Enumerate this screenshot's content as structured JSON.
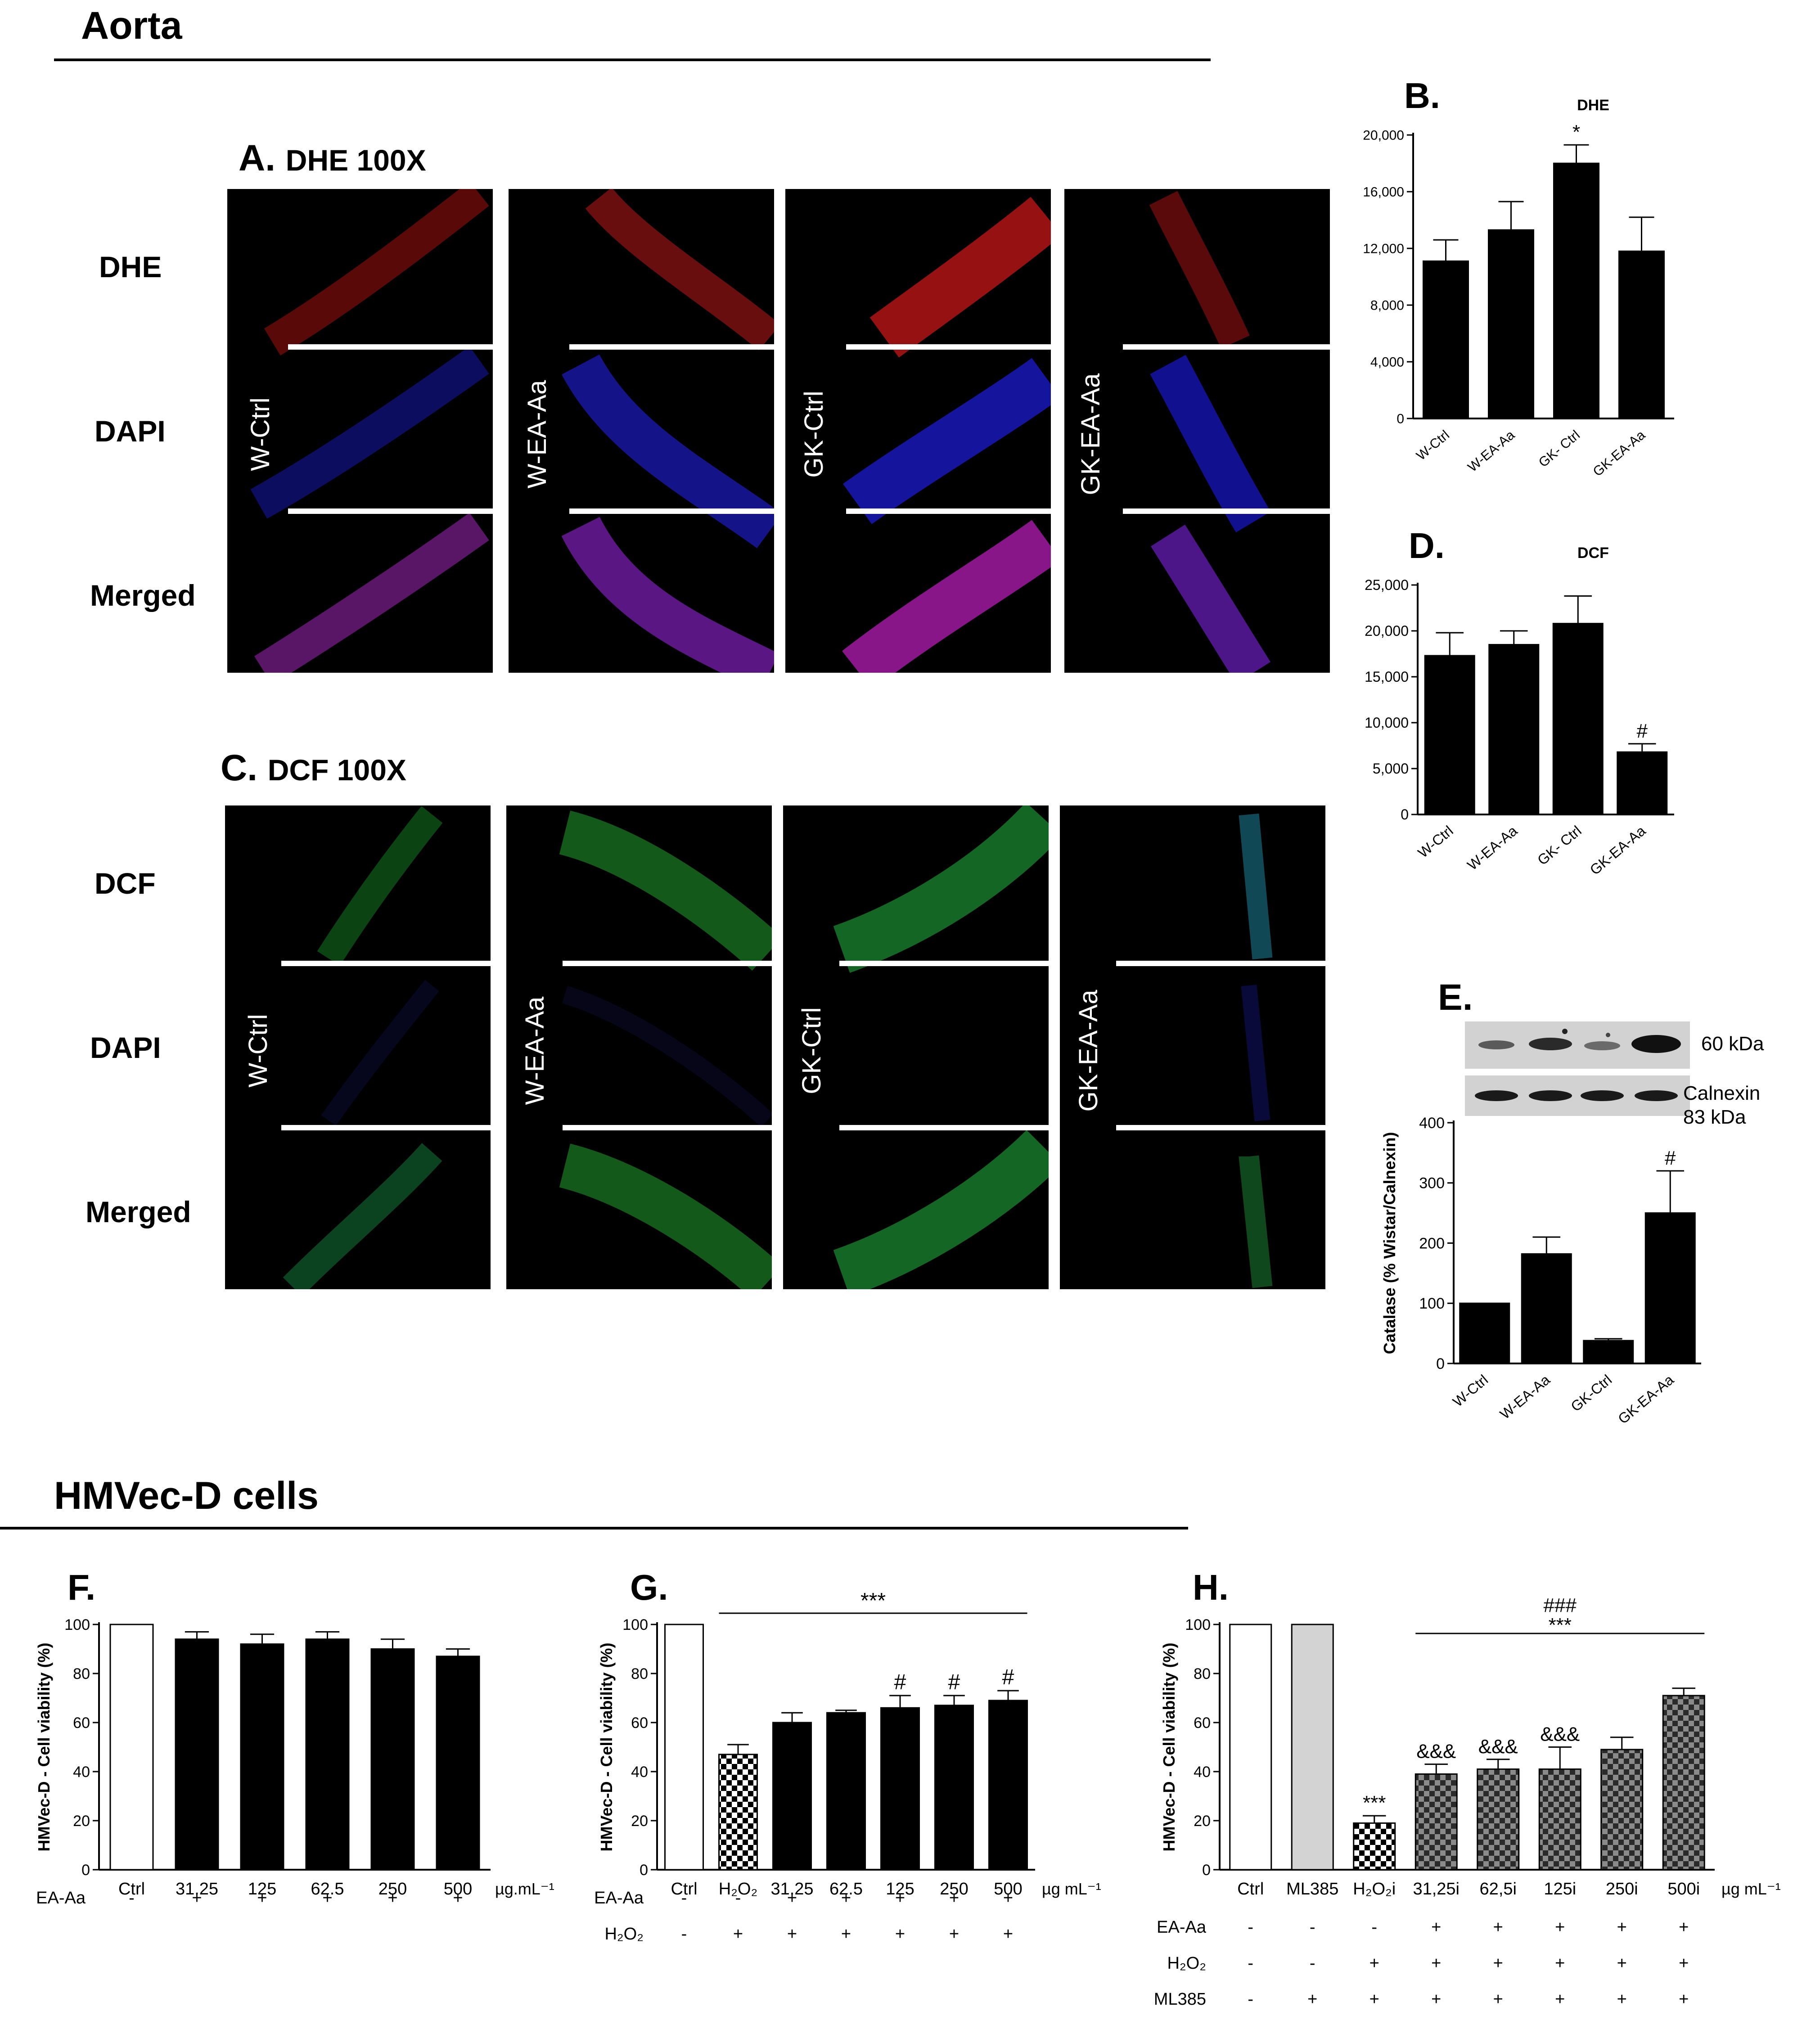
{
  "sections": {
    "aorta": "Aorta",
    "cells": "HMVec-D cells"
  },
  "panel_a": {
    "letter": "A.",
    "title": "DHE 100X",
    "rows": [
      "DHE",
      "DAPI",
      "Merged"
    ],
    "groups": [
      "W-Ctrl",
      "W-EA-Aa",
      "GK-Ctrl",
      "GK-EA-Aa"
    ]
  },
  "panel_c": {
    "letter": "C.",
    "title": "DCF 100X",
    "rows": [
      "DCF",
      "DAPI",
      "Merged"
    ],
    "groups": [
      "W-Ctrl",
      "W-EA-Aa",
      "GK-Ctrl",
      "GK-EA-Aa"
    ]
  },
  "panel_e_blot": {
    "letter": "E.",
    "band_top_label": "60 kDa",
    "band_bottom_label_1": "Calnexin",
    "band_bottom_label_2": "83 kDa"
  },
  "colors": {
    "bar": "#000000",
    "open_bar": "#ffffff",
    "grey_bar": "#d3d3d3",
    "checker_dark": "#000000",
    "checker_mid": "#3c3c3c",
    "dhe_red": "#b01010",
    "dapi_blue": "#1a1ad0",
    "merged_magenta": "#9a1a9a",
    "dcf_green": "#1f8a1f"
  },
  "chart_data": [
    {
      "id": "B",
      "letter": "B.",
      "type": "bar",
      "title": "DHE",
      "categories": [
        "W-Ctrl",
        "W-EA-Aa",
        "GK- Ctrl",
        "GK-EA-Aa"
      ],
      "values": [
        11100,
        13300,
        18000,
        11800
      ],
      "errors": [
        1500,
        2000,
        1300,
        2400
      ],
      "annotations": [
        "",
        "",
        "*",
        ""
      ],
      "ylim": [
        0,
        20000
      ],
      "yticks": [
        0,
        4000,
        8000,
        12000,
        16000,
        20000
      ],
      "ytick_labels": [
        "0",
        "4,000",
        "8,000",
        "12,000",
        "16,000",
        "20,000"
      ],
      "ylabel": ""
    },
    {
      "id": "D",
      "letter": "D.",
      "type": "bar",
      "title": "DCF",
      "categories": [
        "W-Ctrl",
        "W-EA-Aa",
        "GK- Ctrl",
        "GK-EA-Aa"
      ],
      "values": [
        17300,
        18500,
        20800,
        6800
      ],
      "errors": [
        2500,
        1500,
        3000,
        900
      ],
      "annotations": [
        "",
        "",
        "",
        "#"
      ],
      "ylim": [
        0,
        25000
      ],
      "yticks": [
        0,
        5000,
        10000,
        15000,
        20000,
        25000
      ],
      "ytick_labels": [
        "0",
        "5,000",
        "10,000",
        "15,000",
        "20,000",
        "25,000"
      ],
      "ylabel": ""
    },
    {
      "id": "E",
      "type": "bar",
      "title": "",
      "categories": [
        "W-Ctrl",
        "W-EA-Aa",
        "GK-Ctrl",
        "GK-EA-Aa"
      ],
      "values": [
        100,
        182,
        38,
        250
      ],
      "errors": [
        0,
        28,
        3,
        70
      ],
      "annotations": [
        "",
        "",
        "",
        "#"
      ],
      "ylim": [
        0,
        400
      ],
      "yticks": [
        0,
        100,
        200,
        300,
        400
      ],
      "ytick_labels": [
        "0",
        "100",
        "200",
        "300",
        "400"
      ],
      "ylabel": "Catalase (% Wistar/Calnexin)"
    },
    {
      "id": "F",
      "letter": "F.",
      "type": "bar",
      "title": "",
      "categories": [
        "Ctrl",
        "31.25",
        "125",
        "62.5",
        "250",
        "500"
      ],
      "values": [
        100,
        94,
        92,
        94,
        90,
        87
      ],
      "errors": [
        0,
        3,
        4,
        3,
        4,
        3
      ],
      "fills": [
        "open",
        "solid",
        "solid",
        "solid",
        "solid",
        "solid"
      ],
      "ylim": [
        0,
        100
      ],
      "yticks": [
        0,
        20,
        40,
        60,
        80,
        100
      ],
      "ytick_labels": [
        "0",
        "20",
        "40",
        "60",
        "80",
        "100"
      ],
      "ylabel": "HMVec-D - Cell viability (%)",
      "unit": "µg.mL⁻¹",
      "treatment_rows": [
        {
          "label": "EA-Aa",
          "signs": [
            "-",
            "+",
            "+",
            "+",
            "+",
            "+"
          ]
        }
      ]
    },
    {
      "id": "G",
      "letter": "G.",
      "type": "bar",
      "title": "",
      "categories": [
        "Ctrl",
        "H₂O₂",
        "31.25",
        "62.5",
        "125",
        "250",
        "500"
      ],
      "values": [
        100,
        47,
        60,
        64,
        66,
        67,
        69
      ],
      "errors": [
        0,
        4,
        4,
        1,
        5,
        4,
        4
      ],
      "fills": [
        "open",
        "checker",
        "solid",
        "solid",
        "solid",
        "solid",
        "solid"
      ],
      "annotations": [
        "",
        "",
        "",
        "",
        "#",
        "#",
        "#"
      ],
      "bracket_label": "***",
      "ylim": [
        0,
        100
      ],
      "yticks": [
        0,
        20,
        40,
        60,
        80,
        100
      ],
      "ytick_labels": [
        "0",
        "20",
        "40",
        "60",
        "80",
        "100"
      ],
      "ylabel": "HMVec-D - Cell viability (%)",
      "unit": "µg mL⁻¹",
      "treatment_rows": [
        {
          "label": "EA-Aa",
          "signs": [
            "-",
            "-",
            "+",
            "+",
            "+",
            "+",
            "+"
          ]
        },
        {
          "label": "H₂O₂",
          "signs": [
            "-",
            "+",
            "+",
            "+",
            "+",
            "+",
            "+"
          ]
        }
      ]
    },
    {
      "id": "H",
      "letter": "H.",
      "type": "bar",
      "title": "",
      "categories": [
        "Ctrl",
        "ML385",
        "H₂O₂i",
        "31,25i",
        "62,5i",
        "125i",
        "250i",
        "500i"
      ],
      "values": [
        100,
        100,
        19,
        39,
        41,
        41,
        49,
        71
      ],
      "errors": [
        0,
        0,
        3,
        4,
        4,
        9,
        5,
        3
      ],
      "fills": [
        "open",
        "grey",
        "checker",
        "checker_grey",
        "checker_grey",
        "checker_grey",
        "checker_grey",
        "checker_grey"
      ],
      "annotations": [
        "",
        "",
        "***",
        "&&&",
        "&&&",
        "&&&",
        "",
        ""
      ],
      "bracket_label_1": "###",
      "bracket_label_2": "***",
      "ylim": [
        0,
        100
      ],
      "yticks": [
        0,
        20,
        40,
        60,
        80,
        100
      ],
      "ytick_labels": [
        "0",
        "20",
        "40",
        "60",
        "80",
        "100"
      ],
      "ylabel": "HMVec-D - Cell viability (%)",
      "unit": "µg mL⁻¹",
      "treatment_rows": [
        {
          "label": "EA-Aa",
          "signs": [
            "-",
            "-",
            "-",
            "+",
            "+",
            "+",
            "+",
            "+"
          ]
        },
        {
          "label": "H₂O₂",
          "signs": [
            "-",
            "-",
            "+",
            "+",
            "+",
            "+",
            "+",
            "+"
          ]
        },
        {
          "label": "ML385",
          "signs": [
            "-",
            "+",
            "+",
            "+",
            "+",
            "+",
            "+",
            "+"
          ]
        }
      ]
    }
  ]
}
